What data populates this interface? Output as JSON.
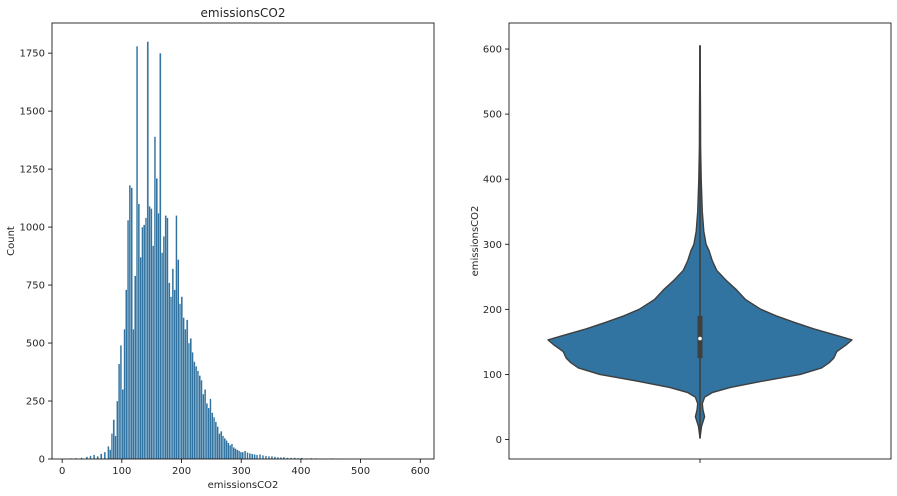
{
  "chart_data": [
    {
      "type": "bar",
      "subtype": "histogram",
      "title": "emissionsCO2",
      "xlabel": "emissionsCO2",
      "ylabel": "Count",
      "xlim": [
        -17,
        623
      ],
      "ylim": [
        0,
        1880
      ],
      "xticks": [
        0,
        100,
        200,
        300,
        400,
        500,
        600
      ],
      "yticks": [
        0,
        250,
        500,
        750,
        1000,
        1250,
        1500,
        1750
      ],
      "bin_width": 3,
      "bar_color": "#3274a1",
      "bins": [
        [
          13,
          3
        ],
        [
          22,
          4
        ],
        [
          31,
          6
        ],
        [
          40,
          10
        ],
        [
          46,
          14
        ],
        [
          52,
          18
        ],
        [
          58,
          12
        ],
        [
          64,
          22
        ],
        [
          70,
          30
        ],
        [
          76,
          55
        ],
        [
          79,
          40
        ],
        [
          82,
          110
        ],
        [
          85,
          170
        ],
        [
          88,
          100
        ],
        [
          91,
          250
        ],
        [
          94,
          410
        ],
        [
          97,
          490
        ],
        [
          100,
          300
        ],
        [
          103,
          560
        ],
        [
          106,
          730
        ],
        [
          109,
          1030
        ],
        [
          112,
          1180
        ],
        [
          115,
          1170
        ],
        [
          118,
          560
        ],
        [
          121,
          790
        ],
        [
          124,
          1780
        ],
        [
          127,
          1100
        ],
        [
          130,
          870
        ],
        [
          133,
          1000
        ],
        [
          136,
          1010
        ],
        [
          139,
          1040
        ],
        [
          142,
          1800
        ],
        [
          145,
          1090
        ],
        [
          148,
          1080
        ],
        [
          151,
          920
        ],
        [
          154,
          1390
        ],
        [
          157,
          1210
        ],
        [
          160,
          1060
        ],
        [
          163,
          1750
        ],
        [
          166,
          890
        ],
        [
          169,
          960
        ],
        [
          172,
          1050
        ],
        [
          175,
          1040
        ],
        [
          178,
          760
        ],
        [
          181,
          700
        ],
        [
          184,
          820
        ],
        [
          187,
          730
        ],
        [
          190,
          1050
        ],
        [
          193,
          860
        ],
        [
          196,
          670
        ],
        [
          199,
          700
        ],
        [
          202,
          610
        ],
        [
          205,
          560
        ],
        [
          208,
          600
        ],
        [
          211,
          500
        ],
        [
          214,
          520
        ],
        [
          217,
          460
        ],
        [
          220,
          420
        ],
        [
          223,
          400
        ],
        [
          226,
          380
        ],
        [
          229,
          360
        ],
        [
          232,
          340
        ],
        [
          235,
          280
        ],
        [
          238,
          300
        ],
        [
          241,
          240
        ],
        [
          244,
          220
        ],
        [
          247,
          260
        ],
        [
          250,
          200
        ],
        [
          253,
          180
        ],
        [
          256,
          160
        ],
        [
          259,
          140
        ],
        [
          262,
          110
        ],
        [
          265,
          120
        ],
        [
          268,
          100
        ],
        [
          271,
          90
        ],
        [
          274,
          80
        ],
        [
          277,
          70
        ],
        [
          280,
          60
        ],
        [
          283,
          65
        ],
        [
          286,
          50
        ],
        [
          289,
          45
        ],
        [
          292,
          40
        ],
        [
          295,
          35
        ],
        [
          298,
          30
        ],
        [
          301,
          30
        ],
        [
          305,
          35
        ],
        [
          309,
          28
        ],
        [
          313,
          25
        ],
        [
          317,
          22
        ],
        [
          321,
          20
        ],
        [
          325,
          18
        ],
        [
          330,
          20
        ],
        [
          335,
          16
        ],
        [
          340,
          14
        ],
        [
          345,
          12
        ],
        [
          350,
          12
        ],
        [
          355,
          10
        ],
        [
          360,
          8
        ],
        [
          365,
          7
        ],
        [
          370,
          8
        ],
        [
          376,
          6
        ],
        [
          382,
          5
        ],
        [
          388,
          6
        ],
        [
          394,
          4
        ],
        [
          400,
          5
        ],
        [
          408,
          3
        ],
        [
          416,
          4
        ],
        [
          424,
          3
        ],
        [
          432,
          2
        ],
        [
          440,
          2
        ],
        [
          450,
          3
        ],
        [
          460,
          2
        ],
        [
          470,
          2
        ],
        [
          480,
          2
        ],
        [
          492,
          1
        ],
        [
          505,
          2
        ],
        [
          520,
          1
        ],
        [
          535,
          1
        ],
        [
          550,
          1
        ],
        [
          568,
          1
        ],
        [
          590,
          1
        ]
      ]
    },
    {
      "type": "violin",
      "ylabel": "emissionsCO2",
      "ylim": [
        -30,
        640
      ],
      "yticks": [
        0,
        100,
        200,
        300,
        400,
        500,
        600
      ],
      "fill_color": "#3274a1",
      "min": 2,
      "max": 605,
      "q1": 125,
      "median": 155,
      "q3": 190,
      "whisker_low": 60,
      "whisker_high": 300,
      "density_profile": [
        [
          2,
          0.0
        ],
        [
          20,
          0.01
        ],
        [
          35,
          0.03
        ],
        [
          45,
          0.02
        ],
        [
          55,
          0.015
        ],
        [
          65,
          0.03
        ],
        [
          72,
          0.08
        ],
        [
          80,
          0.2
        ],
        [
          90,
          0.42
        ],
        [
          100,
          0.66
        ],
        [
          110,
          0.8
        ],
        [
          118,
          0.85
        ],
        [
          125,
          0.88
        ],
        [
          135,
          0.9
        ],
        [
          145,
          0.96
        ],
        [
          153,
          1.0
        ],
        [
          160,
          0.9
        ],
        [
          170,
          0.75
        ],
        [
          180,
          0.62
        ],
        [
          190,
          0.5
        ],
        [
          200,
          0.4
        ],
        [
          215,
          0.3
        ],
        [
          230,
          0.24
        ],
        [
          245,
          0.17
        ],
        [
          260,
          0.11
        ],
        [
          275,
          0.08
        ],
        [
          290,
          0.06
        ],
        [
          300,
          0.04
        ],
        [
          320,
          0.025
        ],
        [
          350,
          0.015
        ],
        [
          400,
          0.008
        ],
        [
          450,
          0.004
        ],
        [
          500,
          0.003
        ],
        [
          550,
          0.002
        ],
        [
          605,
          0.001
        ]
      ]
    }
  ]
}
